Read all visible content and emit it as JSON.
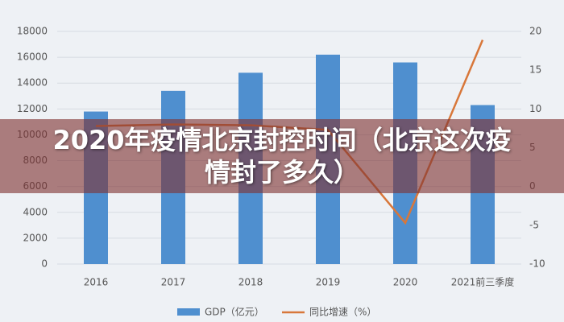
{
  "chart_data": {
    "type": "bar-line",
    "categories": [
      "2016",
      "2017",
      "2018",
      "2019",
      "2020",
      "2021前三季度"
    ],
    "series": [
      {
        "name": "GDP（亿元）",
        "type": "bar",
        "color": "#4f8fcf",
        "values": [
          11800,
          13400,
          14800,
          16200,
          15600,
          12300
        ]
      },
      {
        "name": "同比增速（%）",
        "type": "line",
        "axis": "y2",
        "color": "#d8773a",
        "values": [
          7.8,
          8.0,
          7.9,
          7.3,
          -4.7,
          18.9
        ]
      }
    ],
    "ylim": [
      0,
      18000
    ],
    "yticks": [
      0,
      2000,
      4000,
      6000,
      8000,
      10000,
      12000,
      14000,
      16000,
      18000
    ],
    "y2lim": [
      -10,
      20
    ],
    "y2ticks": [
      -10,
      -5,
      0,
      5,
      10,
      15,
      20
    ],
    "grid": true
  },
  "overlay_title": "2020年疫情北京封控时间（北京这次疫情封了多久）"
}
